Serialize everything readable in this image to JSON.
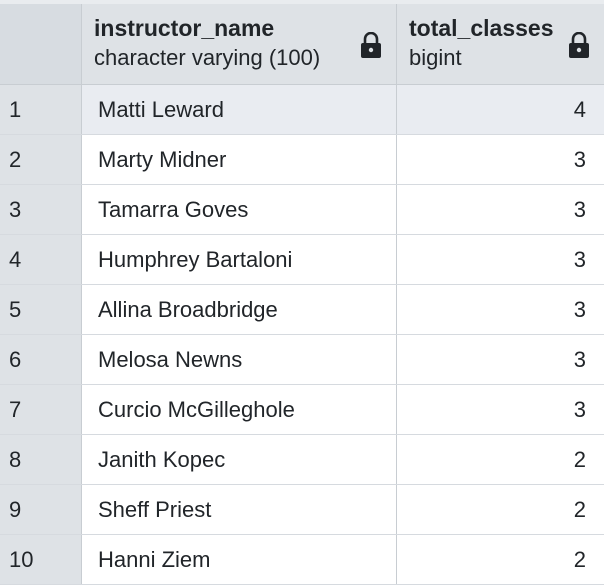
{
  "columns": [
    {
      "name": "instructor_name",
      "type": "character varying (100)"
    },
    {
      "name": "total_classes",
      "type": "bigint"
    }
  ],
  "icons": {
    "column_lock": "lock-icon"
  },
  "rows": [
    {
      "num": "1",
      "instructor_name": "Matti Leward",
      "total_classes": "4"
    },
    {
      "num": "2",
      "instructor_name": "Marty Midner",
      "total_classes": "3"
    },
    {
      "num": "3",
      "instructor_name": "Tamarra Goves",
      "total_classes": "3"
    },
    {
      "num": "4",
      "instructor_name": "Humphrey Bartaloni",
      "total_classes": "3"
    },
    {
      "num": "5",
      "instructor_name": "Allina Broadbridge",
      "total_classes": "3"
    },
    {
      "num": "6",
      "instructor_name": "Melosa Newns",
      "total_classes": "3"
    },
    {
      "num": "7",
      "instructor_name": "Curcio McGilleghole",
      "total_classes": "3"
    },
    {
      "num": "8",
      "instructor_name": "Janith Kopec",
      "total_classes": "2"
    },
    {
      "num": "9",
      "instructor_name": "Sheff Priest",
      "total_classes": "2"
    },
    {
      "num": "10",
      "instructor_name": "Hanni Ziem",
      "total_classes": "2"
    }
  ],
  "selected_row": 0
}
